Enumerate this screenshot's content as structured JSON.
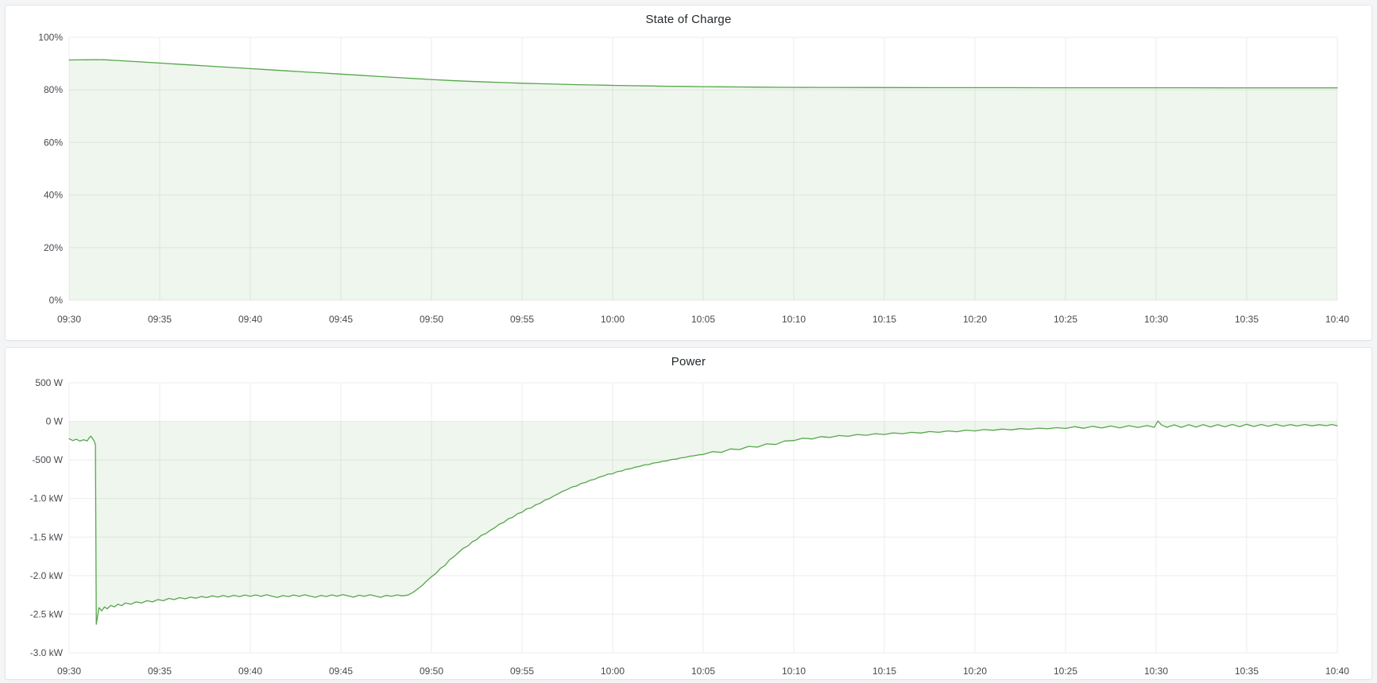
{
  "colors": {
    "page_bg": "#f4f5f6",
    "panel_bg": "#ffffff",
    "panel_border": "#e4e5e7",
    "grid": "#ececec",
    "tick_text": "#45494e",
    "title_text": "#24292d",
    "series_line": "#56a64b",
    "series_fill": "rgba(86,166,75,0.10)"
  },
  "chart_data": [
    {
      "type": "area",
      "title": "State of Charge",
      "xlabel": "",
      "ylabel": "",
      "x_unit": "minutes after 09:30",
      "y_unit": "percent",
      "xlim": [
        0,
        70
      ],
      "ylim": [
        0,
        100
      ],
      "fill_to": 0,
      "grid": true,
      "legend": "none",
      "xticks": [
        {
          "v": 0,
          "label": "09:30"
        },
        {
          "v": 5,
          "label": "09:35"
        },
        {
          "v": 10,
          "label": "09:40"
        },
        {
          "v": 15,
          "label": "09:45"
        },
        {
          "v": 20,
          "label": "09:50"
        },
        {
          "v": 25,
          "label": "09:55"
        },
        {
          "v": 30,
          "label": "10:00"
        },
        {
          "v": 35,
          "label": "10:05"
        },
        {
          "v": 40,
          "label": "10:10"
        },
        {
          "v": 45,
          "label": "10:15"
        },
        {
          "v": 50,
          "label": "10:20"
        },
        {
          "v": 55,
          "label": "10:25"
        },
        {
          "v": 60,
          "label": "10:30"
        },
        {
          "v": 65,
          "label": "10:35"
        },
        {
          "v": 70,
          "label": "10:40"
        }
      ],
      "yticks": [
        {
          "v": 100,
          "label": "100%"
        },
        {
          "v": 80,
          "label": "80%"
        },
        {
          "v": 60,
          "label": "60%"
        },
        {
          "v": 40,
          "label": "40%"
        },
        {
          "v": 20,
          "label": "20%"
        },
        {
          "v": 0,
          "label": "0%"
        }
      ],
      "points": [
        [
          0,
          91.4
        ],
        [
          0.5,
          91.42
        ],
        [
          1,
          91.45
        ],
        [
          1.5,
          91.5
        ],
        [
          2,
          91.45
        ],
        [
          2.5,
          91.25
        ],
        [
          3,
          91.05
        ],
        [
          4,
          90.62
        ],
        [
          5,
          90.2
        ],
        [
          6,
          89.78
        ],
        [
          7,
          89.36
        ],
        [
          8,
          88.94
        ],
        [
          9,
          88.52
        ],
        [
          10,
          88.1
        ],
        [
          11,
          87.68
        ],
        [
          12,
          87.26
        ],
        [
          13,
          86.84
        ],
        [
          14,
          86.42
        ],
        [
          15,
          86.0
        ],
        [
          16,
          85.58
        ],
        [
          17,
          85.16
        ],
        [
          18,
          84.74
        ],
        [
          19,
          84.35
        ],
        [
          20,
          83.95
        ],
        [
          21,
          83.6
        ],
        [
          22,
          83.3
        ],
        [
          23,
          83.02
        ],
        [
          24,
          82.77
        ],
        [
          25,
          82.55
        ],
        [
          26,
          82.35
        ],
        [
          27,
          82.17
        ],
        [
          28,
          82.0
        ],
        [
          29,
          81.86
        ],
        [
          30,
          81.72
        ],
        [
          31,
          81.6
        ],
        [
          32,
          81.5
        ],
        [
          33,
          81.4
        ],
        [
          34,
          81.32
        ],
        [
          35,
          81.24
        ],
        [
          36,
          81.17
        ],
        [
          37,
          81.11
        ],
        [
          38,
          81.06
        ],
        [
          39,
          81.01
        ],
        [
          40,
          80.97
        ],
        [
          42,
          80.93
        ],
        [
          44,
          80.9
        ],
        [
          46,
          80.88
        ],
        [
          48,
          80.86
        ],
        [
          50,
          80.85
        ],
        [
          52,
          80.84
        ],
        [
          54,
          80.83
        ],
        [
          56,
          80.82
        ],
        [
          58,
          80.82
        ],
        [
          60,
          80.81
        ],
        [
          62,
          80.81
        ],
        [
          64,
          80.8
        ],
        [
          66,
          80.8
        ],
        [
          68,
          80.8
        ],
        [
          70,
          80.8
        ]
      ]
    },
    {
      "type": "area",
      "title": "Power",
      "xlabel": "",
      "ylabel": "",
      "x_unit": "minutes after 09:30",
      "y_unit": "watts",
      "xlim": [
        0,
        70
      ],
      "ylim": [
        -3000,
        500
      ],
      "fill_to": 0,
      "grid": true,
      "legend": "none",
      "xticks": [
        {
          "v": 0,
          "label": "09:30"
        },
        {
          "v": 5,
          "label": "09:35"
        },
        {
          "v": 10,
          "label": "09:40"
        },
        {
          "v": 15,
          "label": "09:45"
        },
        {
          "v": 20,
          "label": "09:50"
        },
        {
          "v": 25,
          "label": "09:55"
        },
        {
          "v": 30,
          "label": "10:00"
        },
        {
          "v": 35,
          "label": "10:05"
        },
        {
          "v": 40,
          "label": "10:10"
        },
        {
          "v": 45,
          "label": "10:15"
        },
        {
          "v": 50,
          "label": "10:20"
        },
        {
          "v": 55,
          "label": "10:25"
        },
        {
          "v": 60,
          "label": "10:30"
        },
        {
          "v": 65,
          "label": "10:35"
        },
        {
          "v": 70,
          "label": "10:40"
        }
      ],
      "yticks": [
        {
          "v": 500,
          "label": "500 W"
        },
        {
          "v": 0,
          "label": "0 W"
        },
        {
          "v": -500,
          "label": "-500 W"
        },
        {
          "v": -1000,
          "label": "-1.0 kW"
        },
        {
          "v": -1500,
          "label": "-1.5 kW"
        },
        {
          "v": -2000,
          "label": "-2.0 kW"
        },
        {
          "v": -2500,
          "label": "-2.5 kW"
        },
        {
          "v": -3000,
          "label": "-3.0 kW"
        }
      ],
      "points": [
        [
          0,
          -225
        ],
        [
          0.2,
          -248
        ],
        [
          0.4,
          -232
        ],
        [
          0.6,
          -256
        ],
        [
          0.8,
          -238
        ],
        [
          1.0,
          -252
        ],
        [
          1.1,
          -215
        ],
        [
          1.2,
          -192
        ],
        [
          1.3,
          -225
        ],
        [
          1.4,
          -262
        ],
        [
          1.45,
          -310
        ],
        [
          1.5,
          -2630
        ],
        [
          1.55,
          -2560
        ],
        [
          1.65,
          -2415
        ],
        [
          1.8,
          -2455
        ],
        [
          1.95,
          -2405
        ],
        [
          2.1,
          -2430
        ],
        [
          2.3,
          -2385
        ],
        [
          2.5,
          -2405
        ],
        [
          2.7,
          -2370
        ],
        [
          2.9,
          -2390
        ],
        [
          3.1,
          -2355
        ],
        [
          3.4,
          -2370
        ],
        [
          3.7,
          -2340
        ],
        [
          4.0,
          -2355
        ],
        [
          4.3,
          -2325
        ],
        [
          4.6,
          -2340
        ],
        [
          4.9,
          -2310
        ],
        [
          5.2,
          -2325
        ],
        [
          5.5,
          -2295
        ],
        [
          5.8,
          -2310
        ],
        [
          6.1,
          -2285
        ],
        [
          6.4,
          -2300
        ],
        [
          6.7,
          -2278
        ],
        [
          7.0,
          -2292
        ],
        [
          7.3,
          -2270
        ],
        [
          7.6,
          -2285
        ],
        [
          7.9,
          -2262
        ],
        [
          8.2,
          -2278
        ],
        [
          8.5,
          -2258
        ],
        [
          8.8,
          -2275
        ],
        [
          9.1,
          -2255
        ],
        [
          9.4,
          -2272
        ],
        [
          9.7,
          -2252
        ],
        [
          10.0,
          -2268
        ],
        [
          10.3,
          -2250
        ],
        [
          10.6,
          -2268
        ],
        [
          10.9,
          -2248
        ],
        [
          11.2,
          -2266
        ],
        [
          11.5,
          -2282
        ],
        [
          11.8,
          -2258
        ],
        [
          12.1,
          -2272
        ],
        [
          12.4,
          -2252
        ],
        [
          12.7,
          -2268
        ],
        [
          13.0,
          -2248
        ],
        [
          13.3,
          -2265
        ],
        [
          13.6,
          -2280
        ],
        [
          13.9,
          -2256
        ],
        [
          14.2,
          -2270
        ],
        [
          14.5,
          -2250
        ],
        [
          14.8,
          -2266
        ],
        [
          15.1,
          -2246
        ],
        [
          15.4,
          -2262
        ],
        [
          15.7,
          -2278
        ],
        [
          16.0,
          -2254
        ],
        [
          16.3,
          -2268
        ],
        [
          16.6,
          -2248
        ],
        [
          16.9,
          -2264
        ],
        [
          17.2,
          -2280
        ],
        [
          17.5,
          -2256
        ],
        [
          17.8,
          -2268
        ],
        [
          18.1,
          -2250
        ],
        [
          18.4,
          -2262
        ],
        [
          18.7,
          -2252
        ],
        [
          19.0,
          -2215
        ],
        [
          19.25,
          -2170
        ],
        [
          19.5,
          -2125
        ],
        [
          19.75,
          -2065
        ],
        [
          20.0,
          -2015
        ],
        [
          20.25,
          -1970
        ],
        [
          20.5,
          -1905
        ],
        [
          20.75,
          -1868
        ],
        [
          21.0,
          -1795
        ],
        [
          21.25,
          -1752
        ],
        [
          21.5,
          -1698
        ],
        [
          21.75,
          -1645
        ],
        [
          22.0,
          -1618
        ],
        [
          22.25,
          -1562
        ],
        [
          22.5,
          -1532
        ],
        [
          22.75,
          -1478
        ],
        [
          23.0,
          -1455
        ],
        [
          23.25,
          -1412
        ],
        [
          23.5,
          -1378
        ],
        [
          23.75,
          -1332
        ],
        [
          24.0,
          -1308
        ],
        [
          24.25,
          -1262
        ],
        [
          24.5,
          -1242
        ],
        [
          24.75,
          -1198
        ],
        [
          25.0,
          -1178
        ],
        [
          25.25,
          -1135
        ],
        [
          25.5,
          -1122
        ],
        [
          25.75,
          -1082
        ],
        [
          26.0,
          -1062
        ],
        [
          26.25,
          -1022
        ],
        [
          26.5,
          -1002
        ],
        [
          26.75,
          -968
        ],
        [
          27.0,
          -938
        ],
        [
          27.25,
          -905
        ],
        [
          27.5,
          -882
        ],
        [
          27.75,
          -852
        ],
        [
          28.0,
          -838
        ],
        [
          28.25,
          -806
        ],
        [
          28.5,
          -792
        ],
        [
          28.75,
          -764
        ],
        [
          29.0,
          -752
        ],
        [
          29.25,
          -724
        ],
        [
          29.5,
          -708
        ],
        [
          29.75,
          -684
        ],
        [
          30.0,
          -680
        ],
        [
          30.25,
          -652
        ],
        [
          30.5,
          -644
        ],
        [
          30.75,
          -620
        ],
        [
          31.0,
          -614
        ],
        [
          31.25,
          -592
        ],
        [
          31.5,
          -584
        ],
        [
          31.75,
          -564
        ],
        [
          32.0,
          -560
        ],
        [
          32.25,
          -540
        ],
        [
          32.5,
          -534
        ],
        [
          32.75,
          -518
        ],
        [
          33.0,
          -512
        ],
        [
          33.25,
          -494
        ],
        [
          33.5,
          -490
        ],
        [
          33.75,
          -474
        ],
        [
          34.0,
          -468
        ],
        [
          34.25,
          -452
        ],
        [
          34.5,
          -446
        ],
        [
          34.75,
          -434
        ],
        [
          35.0,
          -430
        ],
        [
          35.5,
          -392
        ],
        [
          36.0,
          -402
        ],
        [
          36.5,
          -358
        ],
        [
          37.0,
          -366
        ],
        [
          37.5,
          -325
        ],
        [
          38.0,
          -334
        ],
        [
          38.5,
          -292
        ],
        [
          39.0,
          -300
        ],
        [
          39.5,
          -255
        ],
        [
          40.0,
          -248
        ],
        [
          40.5,
          -218
        ],
        [
          41.0,
          -228
        ],
        [
          41.5,
          -198
        ],
        [
          42.0,
          -208
        ],
        [
          42.5,
          -184
        ],
        [
          43.0,
          -194
        ],
        [
          43.5,
          -170
        ],
        [
          44.0,
          -180
        ],
        [
          44.5,
          -160
        ],
        [
          45.0,
          -170
        ],
        [
          45.5,
          -150
        ],
        [
          46.0,
          -160
        ],
        [
          46.5,
          -142
        ],
        [
          47.0,
          -152
        ],
        [
          47.5,
          -132
        ],
        [
          48.0,
          -142
        ],
        [
          48.5,
          -124
        ],
        [
          49.0,
          -134
        ],
        [
          49.5,
          -114
        ],
        [
          50.0,
          -124
        ],
        [
          50.5,
          -106
        ],
        [
          51.0,
          -116
        ],
        [
          51.5,
          -100
        ],
        [
          52.0,
          -110
        ],
        [
          52.5,
          -94
        ],
        [
          53.0,
          -102
        ],
        [
          53.5,
          -88
        ],
        [
          54.0,
          -96
        ],
        [
          54.5,
          -82
        ],
        [
          55.0,
          -92
        ],
        [
          55.5,
          -68
        ],
        [
          56.0,
          -90
        ],
        [
          56.5,
          -64
        ],
        [
          57.0,
          -86
        ],
        [
          57.5,
          -60
        ],
        [
          58.0,
          -84
        ],
        [
          58.5,
          -56
        ],
        [
          59.0,
          -80
        ],
        [
          59.5,
          -55
        ],
        [
          59.9,
          -78
        ],
        [
          60.1,
          5
        ],
        [
          60.3,
          -48
        ],
        [
          60.6,
          -76
        ],
        [
          61.0,
          -46
        ],
        [
          61.4,
          -78
        ],
        [
          61.8,
          -44
        ],
        [
          62.2,
          -74
        ],
        [
          62.6,
          -42
        ],
        [
          63.0,
          -72
        ],
        [
          63.4,
          -44
        ],
        [
          63.8,
          -70
        ],
        [
          64.2,
          -40
        ],
        [
          64.6,
          -68
        ],
        [
          65.0,
          -38
        ],
        [
          65.4,
          -66
        ],
        [
          65.8,
          -40
        ],
        [
          66.2,
          -64
        ],
        [
          66.6,
          -38
        ],
        [
          67.0,
          -62
        ],
        [
          67.4,
          -42
        ],
        [
          67.8,
          -60
        ],
        [
          68.2,
          -40
        ],
        [
          68.6,
          -58
        ],
        [
          69.0,
          -44
        ],
        [
          69.4,
          -56
        ],
        [
          69.7,
          -40
        ],
        [
          70.0,
          -58
        ]
      ]
    }
  ]
}
